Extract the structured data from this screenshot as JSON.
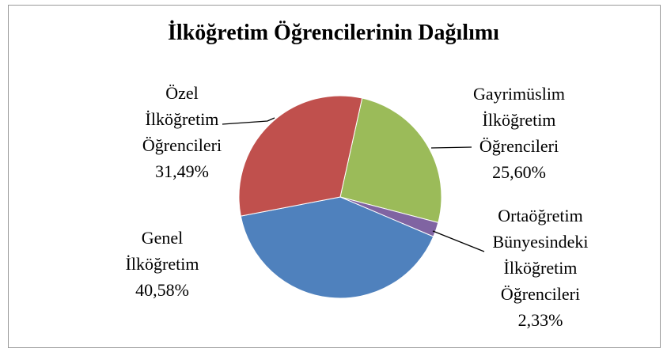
{
  "chart_data": {
    "type": "pie",
    "title": "İlköğretim Öğrencilerinin Dağılımı",
    "categories": [
      "Gayrimüslim İlköğretim Öğrencileri",
      "Ortaöğretim Bünyesindeki İlköğretim Öğrencileri",
      "Genel İlköğretim",
      "Özel İlköğretim Öğrencileri"
    ],
    "values": [
      25.6,
      2.33,
      40.58,
      31.49
    ],
    "value_labels": [
      "25,60%",
      "2,33%",
      "40,58%",
      "31,49%"
    ],
    "colors": [
      "#9bbb59",
      "#8064a2",
      "#4f81bd",
      "#c0504d"
    ]
  }
}
